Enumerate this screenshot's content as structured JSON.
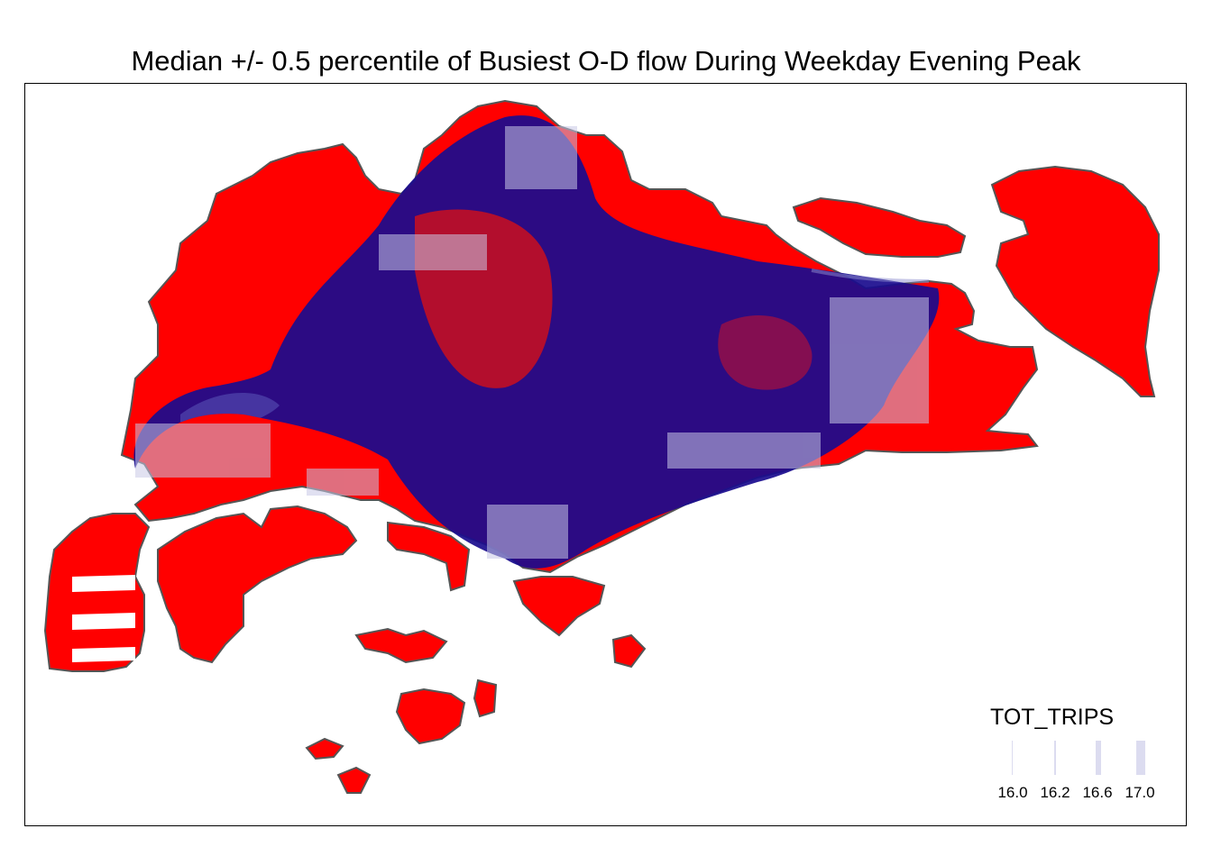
{
  "title": "Median +/- 0.5 percentile of Busiest O-D flow During Weekday Evening Peak",
  "colors": {
    "land": "#ff0000",
    "boundary": "#555555",
    "flow": "#00008b",
    "hex_fill": "#c8c8e6",
    "hex_stroke": "#ffffff"
  },
  "legend": {
    "title": "TOT_TRIPS",
    "entries": [
      {
        "label": "16.0",
        "value": 16.0
      },
      {
        "label": "16.2",
        "value": 16.2
      },
      {
        "label": "16.6",
        "value": 16.6
      },
      {
        "label": "17.0",
        "value": 17.0
      }
    ]
  }
}
